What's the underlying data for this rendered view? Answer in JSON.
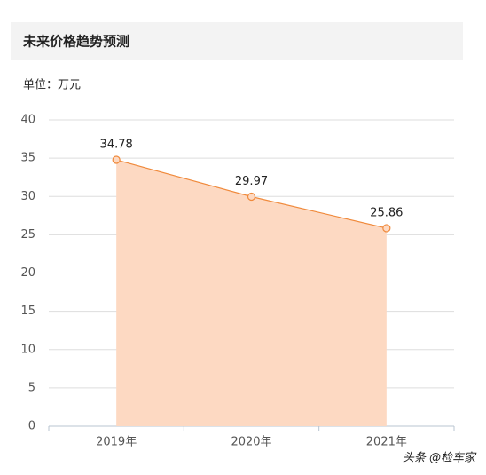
{
  "chart_data": {
    "type": "area",
    "title": "未来价格趋势预测",
    "subtitle": "单位：万元",
    "categories": [
      "2019年",
      "2020年",
      "2021年"
    ],
    "values": [
      34.78,
      29.97,
      25.86
    ],
    "color": "#f08a3c",
    "fill_color": "#fdd9c2",
    "ylim": [
      0,
      40
    ],
    "yticks": [
      0,
      5,
      10,
      15,
      20,
      25,
      30,
      35,
      40
    ],
    "grid": true
  },
  "watermark": "头条 @检车家"
}
